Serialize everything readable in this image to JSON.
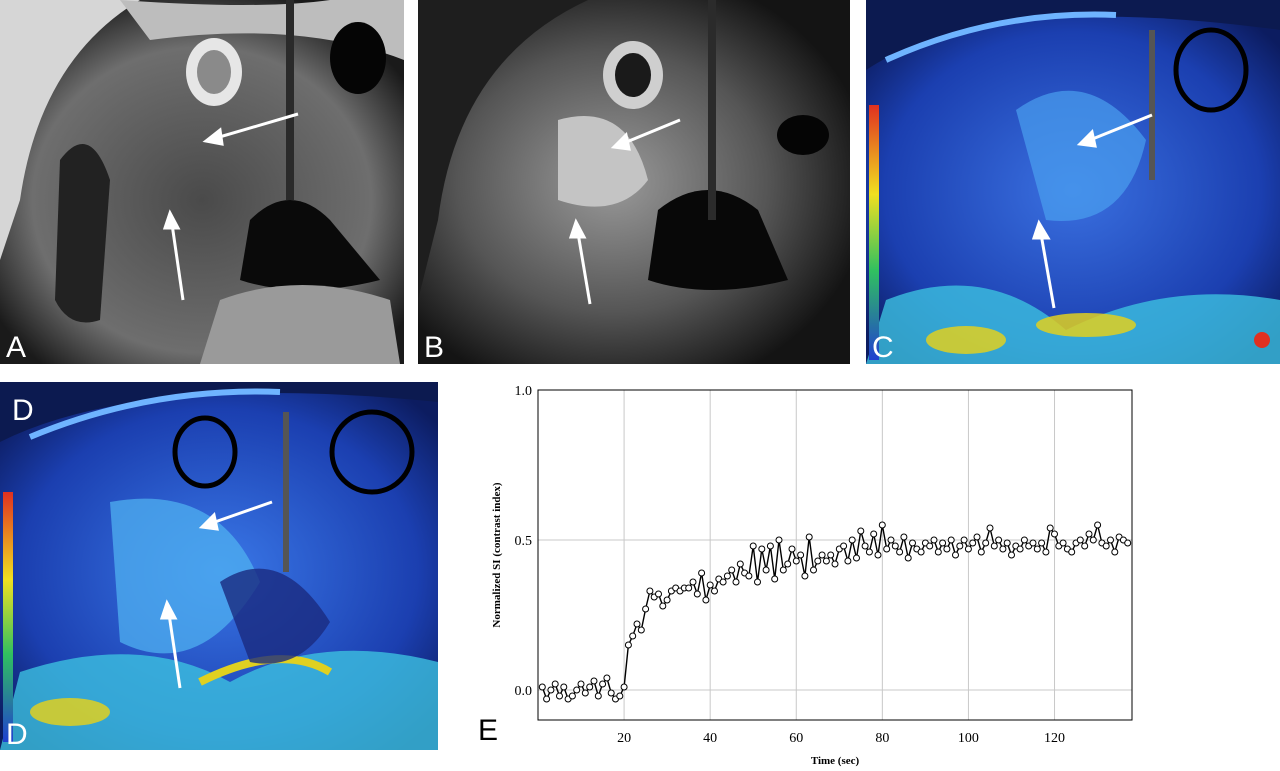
{
  "panels": {
    "a": {
      "letter": "A"
    },
    "b": {
      "letter": "B"
    },
    "c": {
      "letter": "C"
    },
    "d": {
      "top_letter": "D",
      "bottom_letter": "D"
    },
    "e": {
      "letter": "E"
    }
  },
  "colors": {
    "map_background": "#1b3fb0",
    "colorbar_top": "#e03020",
    "colorbar_bottom": "#2040d0",
    "curve": "#000000",
    "gridline": "#c8c8c8"
  },
  "chart_data": {
    "type": "scatter",
    "xlabel": "Time (sec)",
    "ylabel": "Normalized SI (contrast index)",
    "xlim": [
      0,
      138
    ],
    "ylim": [
      -0.1,
      1.0
    ],
    "x_ticks": [
      20,
      40,
      60,
      80,
      100,
      120
    ],
    "y_ticks": [
      "0.0",
      "0.5",
      "1.0"
    ],
    "y_tick_values": [
      0.0,
      0.5,
      1.0
    ],
    "grid": true,
    "x": [
      1,
      2,
      3,
      4,
      5,
      6,
      7,
      8,
      9,
      10,
      11,
      12,
      13,
      14,
      15,
      16,
      17,
      18,
      19,
      20,
      21,
      22,
      23,
      24,
      25,
      26,
      27,
      28,
      29,
      30,
      31,
      32,
      33,
      34,
      35,
      36,
      37,
      38,
      39,
      40,
      41,
      42,
      43,
      44,
      45,
      46,
      47,
      48,
      49,
      50,
      51,
      52,
      53,
      54,
      55,
      56,
      57,
      58,
      59,
      60,
      61,
      62,
      63,
      64,
      65,
      66,
      67,
      68,
      69,
      70,
      71,
      72,
      73,
      74,
      75,
      76,
      77,
      78,
      79,
      80,
      81,
      82,
      83,
      84,
      85,
      86,
      87,
      88,
      89,
      90,
      91,
      92,
      93,
      94,
      95,
      96,
      97,
      98,
      99,
      100,
      101,
      102,
      103,
      104,
      105,
      106,
      107,
      108,
      109,
      110,
      111,
      112,
      113,
      114,
      115,
      116,
      117,
      118,
      119,
      120,
      121,
      122,
      123,
      124,
      125,
      126,
      127,
      128,
      129,
      130,
      131,
      132,
      133,
      134,
      135,
      136,
      137
    ],
    "y": [
      0.01,
      -0.03,
      0.0,
      0.02,
      -0.02,
      0.01,
      -0.03,
      -0.02,
      0.0,
      0.02,
      -0.01,
      0.01,
      0.03,
      -0.02,
      0.02,
      0.04,
      -0.01,
      -0.03,
      -0.02,
      0.01,
      0.15,
      0.18,
      0.22,
      0.2,
      0.27,
      0.33,
      0.31,
      0.32,
      0.28,
      0.3,
      0.33,
      0.34,
      0.33,
      0.34,
      0.34,
      0.36,
      0.32,
      0.39,
      0.3,
      0.35,
      0.33,
      0.37,
      0.36,
      0.38,
      0.4,
      0.36,
      0.42,
      0.39,
      0.38,
      0.48,
      0.36,
      0.47,
      0.4,
      0.48,
      0.37,
      0.5,
      0.4,
      0.42,
      0.47,
      0.43,
      0.45,
      0.38,
      0.51,
      0.4,
      0.43,
      0.45,
      0.43,
      0.45,
      0.42,
      0.47,
      0.48,
      0.43,
      0.5,
      0.44,
      0.53,
      0.48,
      0.46,
      0.52,
      0.45,
      0.55,
      0.47,
      0.5,
      0.48,
      0.46,
      0.51,
      0.44,
      0.49,
      0.47,
      0.46,
      0.49,
      0.48,
      0.5,
      0.46,
      0.49,
      0.47,
      0.5,
      0.45,
      0.48,
      0.5,
      0.47,
      0.49,
      0.51,
      0.46,
      0.49,
      0.54,
      0.48,
      0.5,
      0.47,
      0.49,
      0.45,
      0.48,
      0.47,
      0.5,
      0.48,
      0.49,
      0.47,
      0.49,
      0.46,
      0.54,
      0.52,
      0.48,
      0.49,
      0.47,
      0.46,
      0.49,
      0.5,
      0.48,
      0.52,
      0.5,
      0.55,
      0.49,
      0.48,
      0.5,
      0.46,
      0.51,
      0.5,
      0.49
    ]
  }
}
